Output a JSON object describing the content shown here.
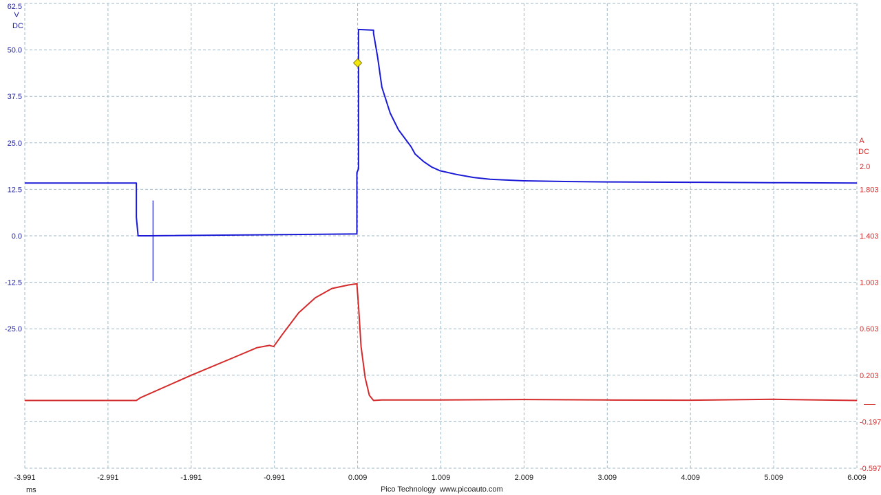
{
  "chart_data": {
    "type": "line",
    "xlim": [
      -3.991,
      6.009
    ],
    "x_ticks": [
      -3.991,
      -2.991,
      -1.991,
      -0.991,
      0.009,
      1.009,
      2.009,
      3.009,
      4.009,
      5.009,
      6.009
    ],
    "x_tick_labels": [
      "-3.991",
      "-2.991",
      "-1.991",
      "-0.991",
      "0.009",
      "1.009",
      "2.009",
      "3.009",
      "4.009",
      "5.009",
      "6.009"
    ],
    "xlabel": "ms",
    "grid": true,
    "left_axis": {
      "unit": "V",
      "coupling": "DC",
      "ylim": [
        -62.5,
        62.5
      ],
      "ticks": [
        62.5,
        50.0,
        37.5,
        25.0,
        12.5,
        0.0,
        -12.5,
        -25.0
      ],
      "tick_labels": [
        "62.5",
        "50.0",
        "37.5",
        "25.0",
        "12.5",
        "0.0",
        "-12.5",
        "-25.0"
      ],
      "color": "#1a1ad6"
    },
    "right_axis": {
      "unit": "A",
      "coupling": "DC",
      "ylim": [
        -0.597,
        2.6
      ],
      "ticks": [
        2.0,
        1.803,
        1.403,
        1.003,
        0.603,
        0.203,
        -0.197,
        -0.597
      ],
      "tick_labels": [
        "2.0",
        "1.803",
        "1.403",
        "1.003",
        "0.603",
        "0.203",
        "-0.197",
        "-0.597"
      ],
      "color": "#d42a2a"
    },
    "series": [
      {
        "axis": "left",
        "color": "#1a1ad6",
        "x": [
          -3.991,
          -2.65,
          -2.65,
          -2.63,
          -2.63,
          -2.5,
          0.0,
          0.0,
          0.0,
          0.02,
          0.02,
          0.2,
          0.2,
          0.25,
          0.3,
          0.4,
          0.5,
          0.6,
          0.65,
          0.7,
          0.8,
          0.9,
          1.0,
          1.2,
          1.4,
          1.6,
          1.8,
          2.0,
          2.5,
          3.0,
          4.0,
          5.0,
          6.009
        ],
        "y": [
          14.2,
          14.2,
          5.0,
          0.3,
          0.0,
          0.0,
          0.5,
          0.5,
          17.0,
          18.0,
          55.5,
          55.3,
          54.5,
          48.0,
          40.0,
          33.0,
          28.5,
          25.5,
          24.0,
          22.0,
          20.0,
          18.5,
          17.5,
          16.5,
          15.7,
          15.2,
          15.0,
          14.8,
          14.6,
          14.5,
          14.4,
          14.3,
          14.2
        ]
      },
      {
        "axis": "right",
        "color": "#d42a2a",
        "x": [
          -3.991,
          -3.0,
          -2.65,
          -2.6,
          -2.0,
          -1.5,
          -1.2,
          -1.05,
          -1.0,
          -0.9,
          -0.7,
          -0.5,
          -0.3,
          -0.1,
          0.0,
          0.02,
          0.05,
          0.1,
          0.15,
          0.2,
          0.3,
          1.0,
          2.0,
          3.0,
          4.0,
          5.0,
          6.009
        ],
        "y": [
          -0.014,
          -0.014,
          -0.014,
          0.01,
          0.2,
          0.35,
          0.44,
          0.46,
          0.45,
          0.55,
          0.74,
          0.87,
          0.95,
          0.98,
          0.99,
          0.8,
          0.45,
          0.18,
          0.03,
          -0.014,
          -0.01,
          -0.01,
          -0.006,
          -0.01,
          -0.012,
          -0.004,
          -0.014
        ]
      }
    ],
    "vertical_spikes": [
      {
        "axis": "left",
        "x": -2.45,
        "y_from": 9.5,
        "y_to": -12.2,
        "color": "#1a1ad6"
      }
    ],
    "markers": [
      {
        "kind": "trigger",
        "shape": "diamond",
        "x": 0.009,
        "y": 46.5,
        "axis": "left",
        "color": "#f2e60c"
      }
    ],
    "right_reference_marker": {
      "y": -0.05
    }
  },
  "footer": {
    "brand": "Pico Technology",
    "url": "www.picoauto.com"
  }
}
